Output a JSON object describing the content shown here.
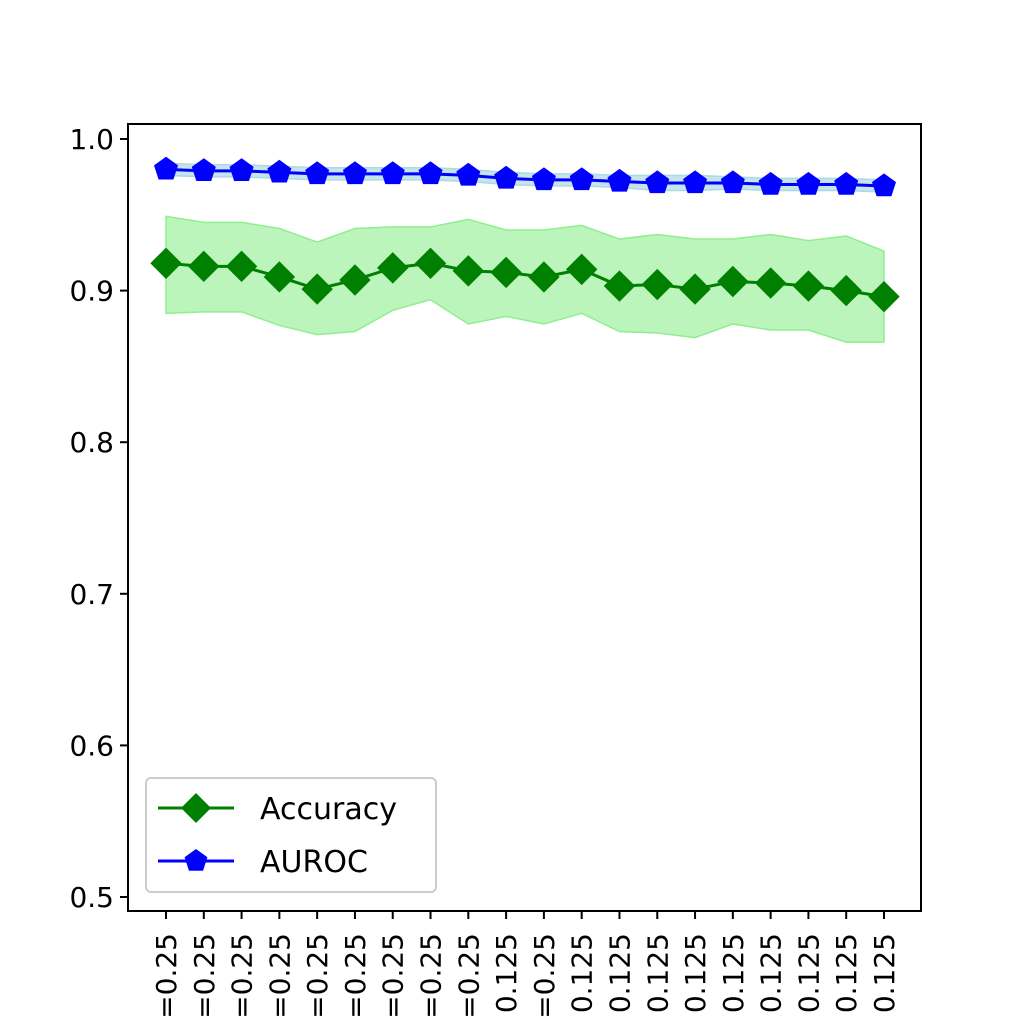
{
  "chart_data": {
    "type": "line",
    "title": "",
    "xlabel": "",
    "ylabel": "",
    "ylim": [
      0.5,
      1.0
    ],
    "yticks": [
      "0.5",
      "0.6",
      "0.7",
      "0.8",
      "0.9",
      "1.0"
    ],
    "categories": [
      "=0.25",
      "=0.25",
      "=0.25",
      "=0.25",
      "=0.25",
      "=0.25",
      "=0.25",
      "=0.25",
      "=0.25",
      "0.125",
      "=0.25",
      "0.125",
      "0.125",
      "0.125",
      "0.125",
      "0.125",
      "0.125",
      "0.125",
      "0.125",
      "0.125"
    ],
    "grid": false,
    "legend_position": "lower-left",
    "series": [
      {
        "name": "Accuracy",
        "color": "#008000",
        "band_color": "#90ee90",
        "marker": "diamond",
        "values": [
          0.918,
          0.916,
          0.916,
          0.909,
          0.901,
          0.907,
          0.915,
          0.918,
          0.913,
          0.912,
          0.909,
          0.914,
          0.903,
          0.904,
          0.901,
          0.906,
          0.905,
          0.903,
          0.9,
          0.896
        ],
        "lower": [
          0.885,
          0.886,
          0.886,
          0.877,
          0.871,
          0.873,
          0.887,
          0.894,
          0.878,
          0.883,
          0.878,
          0.885,
          0.873,
          0.872,
          0.869,
          0.878,
          0.874,
          0.874,
          0.866,
          0.866
        ],
        "upper": [
          0.949,
          0.945,
          0.945,
          0.941,
          0.932,
          0.941,
          0.942,
          0.942,
          0.947,
          0.94,
          0.94,
          0.943,
          0.934,
          0.937,
          0.934,
          0.934,
          0.937,
          0.933,
          0.936,
          0.926
        ]
      },
      {
        "name": "AUROC",
        "color": "#0000ff",
        "band_color": "#add8e6",
        "marker": "pentagon",
        "values": [
          0.98,
          0.979,
          0.979,
          0.978,
          0.977,
          0.977,
          0.977,
          0.977,
          0.976,
          0.974,
          0.973,
          0.973,
          0.972,
          0.971,
          0.971,
          0.971,
          0.97,
          0.97,
          0.97,
          0.969
        ],
        "lower": [
          0.976,
          0.975,
          0.975,
          0.974,
          0.973,
          0.973,
          0.973,
          0.973,
          0.972,
          0.97,
          0.969,
          0.969,
          0.968,
          0.966,
          0.966,
          0.967,
          0.966,
          0.966,
          0.966,
          0.965
        ],
        "upper": [
          0.984,
          0.983,
          0.983,
          0.982,
          0.981,
          0.981,
          0.981,
          0.981,
          0.98,
          0.978,
          0.977,
          0.977,
          0.976,
          0.976,
          0.976,
          0.975,
          0.974,
          0.974,
          0.974,
          0.973
        ]
      }
    ]
  }
}
